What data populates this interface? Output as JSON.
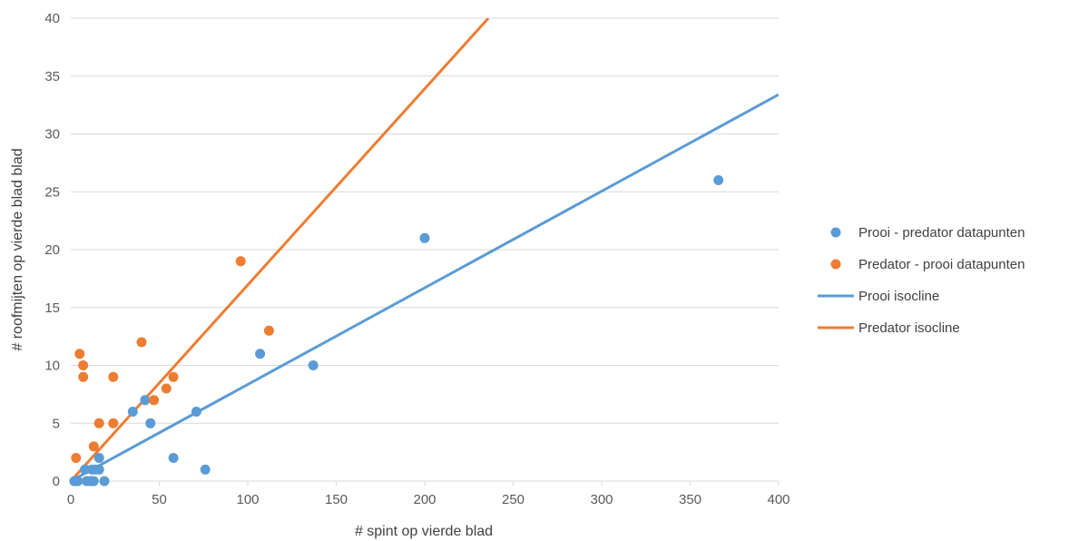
{
  "chart_data": {
    "type": "scatter",
    "title": "",
    "xlabel": "# spint op vierde blad",
    "ylabel": "# roofmijten op vierde blad  blad",
    "xlim": [
      0,
      400
    ],
    "ylim": [
      0,
      40
    ],
    "x_ticks": [
      "0",
      "50",
      "100",
      "150",
      "200",
      "250",
      "300",
      "350",
      "400"
    ],
    "y_ticks": [
      "0",
      "5",
      "10",
      "15",
      "20",
      "25",
      "30",
      "35",
      "40"
    ],
    "grid": "horizontal",
    "legend_position": "right",
    "series": [
      {
        "name": "Prooi - predator datapunten",
        "kind": "scatter",
        "color": "#5b9bd5",
        "points": [
          [
            2,
            0
          ],
          [
            3,
            0
          ],
          [
            4,
            0
          ],
          [
            9,
            0
          ],
          [
            11,
            0
          ],
          [
            12,
            0
          ],
          [
            13,
            0
          ],
          [
            19,
            0
          ],
          [
            8,
            1
          ],
          [
            12,
            1
          ],
          [
            14,
            1
          ],
          [
            16,
            1
          ],
          [
            16,
            2
          ],
          [
            35,
            6
          ],
          [
            42,
            7
          ],
          [
            45,
            5
          ],
          [
            58,
            2
          ],
          [
            71,
            6
          ],
          [
            76,
            1
          ],
          [
            107,
            11
          ],
          [
            137,
            10
          ],
          [
            200,
            21
          ],
          [
            366,
            26
          ]
        ]
      },
      {
        "name": "Predator - prooi datapunten",
        "kind": "scatter",
        "color": "#ed7d31",
        "points": [
          [
            3,
            2
          ],
          [
            5,
            11
          ],
          [
            7,
            10
          ],
          [
            7,
            9
          ],
          [
            13,
            3
          ],
          [
            16,
            5
          ],
          [
            24,
            9
          ],
          [
            24,
            5
          ],
          [
            40,
            12
          ],
          [
            47,
            7
          ],
          [
            54,
            8
          ],
          [
            58,
            9
          ],
          [
            96,
            19
          ],
          [
            112,
            13
          ]
        ]
      },
      {
        "name": "Prooi isocline",
        "kind": "line",
        "color": "#5b9bd5",
        "points": [
          [
            0,
            0
          ],
          [
            400,
            33.4
          ]
        ]
      },
      {
        "name": "Predator isocline",
        "kind": "line",
        "color": "#ed7d31",
        "points": [
          [
            0,
            0
          ],
          [
            236,
            40
          ]
        ]
      }
    ]
  }
}
